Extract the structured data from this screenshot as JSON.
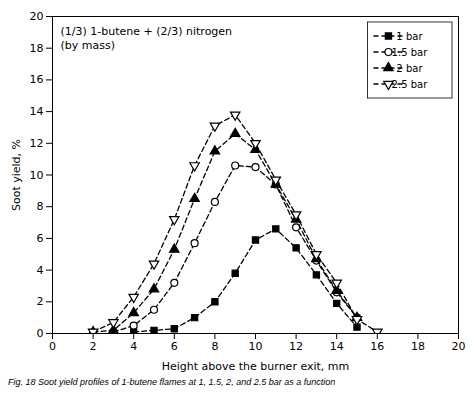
{
  "chart_data": {
    "type": "line",
    "annotation": "(1/3) 1-butene + (2/3) nitrogen\n(by mass)",
    "caption": "Fig. 18  Soot yield profiles of 1-butene flames at 1, 1.5, 2, and 2.5 bar as a function",
    "xlabel": "Height above the burner exit, mm",
    "ylabel": "Soot yield, %",
    "xlim": [
      0,
      20
    ],
    "ylim": [
      0,
      20
    ],
    "xticks": [
      0,
      2,
      4,
      6,
      8,
      10,
      12,
      14,
      16,
      18,
      20
    ],
    "yticks": [
      0,
      2,
      4,
      6,
      8,
      10,
      12,
      14,
      16,
      18,
      20
    ],
    "grid": false,
    "legend": "upper right",
    "series": [
      {
        "name": "1 bar",
        "color": "black",
        "marker": "square",
        "line_style": "dashed",
        "x": [
          4,
          5,
          6,
          7,
          8,
          9,
          10,
          11,
          12,
          13,
          14,
          15
        ],
        "values": [
          0.1,
          0.2,
          0.3,
          1.0,
          2.0,
          3.8,
          5.9,
          6.6,
          5.4,
          3.7,
          1.9,
          0.4
        ]
      },
      {
        "name": "1.5 bar",
        "color": "black",
        "marker": "circle-open",
        "line_style": "dashed",
        "x": [
          3,
          4,
          5,
          6,
          7,
          8,
          9,
          10,
          11,
          12,
          13,
          14,
          15
        ],
        "values": [
          0.1,
          0.5,
          1.5,
          3.2,
          5.7,
          8.3,
          10.6,
          10.5,
          9.4,
          6.7,
          4.6,
          2.6,
          1.0
        ]
      },
      {
        "name": "2 bar",
        "color": "black",
        "marker": "triangle-up",
        "line_style": "dashed",
        "x": [
          2,
          3,
          4,
          5,
          6,
          7,
          8,
          9,
          10,
          11,
          12,
          13,
          14,
          15
        ],
        "values": [
          0.1,
          0.2,
          1.3,
          2.8,
          5.3,
          8.5,
          11.5,
          12.6,
          11.6,
          9.4,
          7.2,
          4.7,
          2.7,
          1.0
        ]
      },
      {
        "name": "2.5 bar",
        "color": "black",
        "marker": "triangle-down-open",
        "line_style": "dashed",
        "x": [
          2,
          3,
          4,
          5,
          6,
          7,
          8,
          9,
          10,
          11,
          12,
          13,
          14,
          15,
          16
        ],
        "values": [
          0.1,
          0.7,
          2.3,
          4.4,
          7.2,
          10.6,
          13.1,
          13.8,
          12.0,
          9.7,
          7.5,
          5.0,
          3.2,
          0.9,
          0.1
        ]
      }
    ]
  }
}
